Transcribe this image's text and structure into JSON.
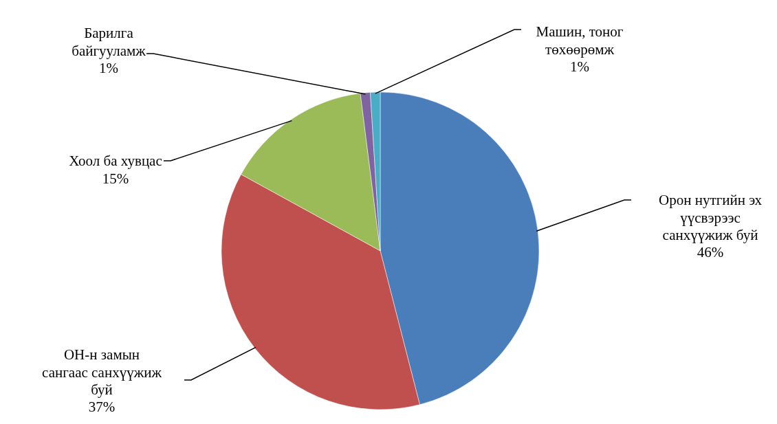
{
  "chart_data": {
    "type": "pie",
    "categories": [
      "Орон нутгийн эх үүсвэрээс санхүүжиж буй",
      "ОН-н замын сангаас санхүүжиж буй",
      "Хоол ба хувцас",
      "Барилга байгууламж",
      "Машин, тоног төхөөрөмж"
    ],
    "values": [
      46,
      37,
      15,
      1,
      1
    ],
    "value_labels": [
      "46%",
      "37%",
      "15%",
      "1%",
      "1%"
    ],
    "colors": [
      "#4a7ebb",
      "#c0504d",
      "#9bbb59",
      "#8064a2",
      "#4bacc6"
    ]
  }
}
